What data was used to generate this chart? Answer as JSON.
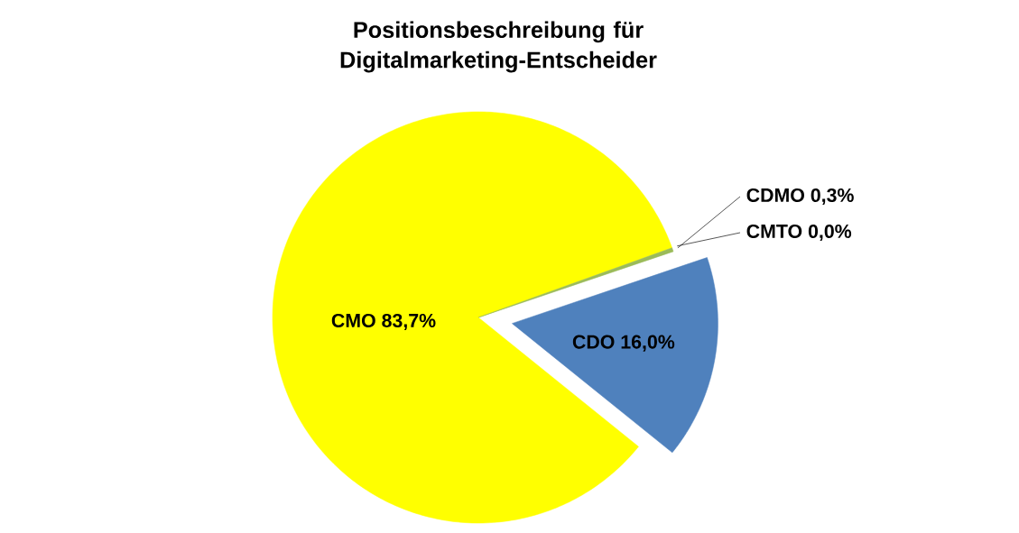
{
  "chart_data": {
    "type": "pie",
    "title": "Positionsbeschreibung für Digitalmarketing-Entscheider",
    "categories": [
      "CMO",
      "CMTO",
      "CDMO",
      "CDO"
    ],
    "values": [
      83.7,
      0.0,
      0.3,
      16.0
    ],
    "value_labels": [
      "83,7%",
      "0,0%",
      "0,3%",
      "16,0%"
    ],
    "colors": [
      "#ffff00",
      "#8064a2",
      "#9bbb59",
      "#4f81bd"
    ]
  }
}
